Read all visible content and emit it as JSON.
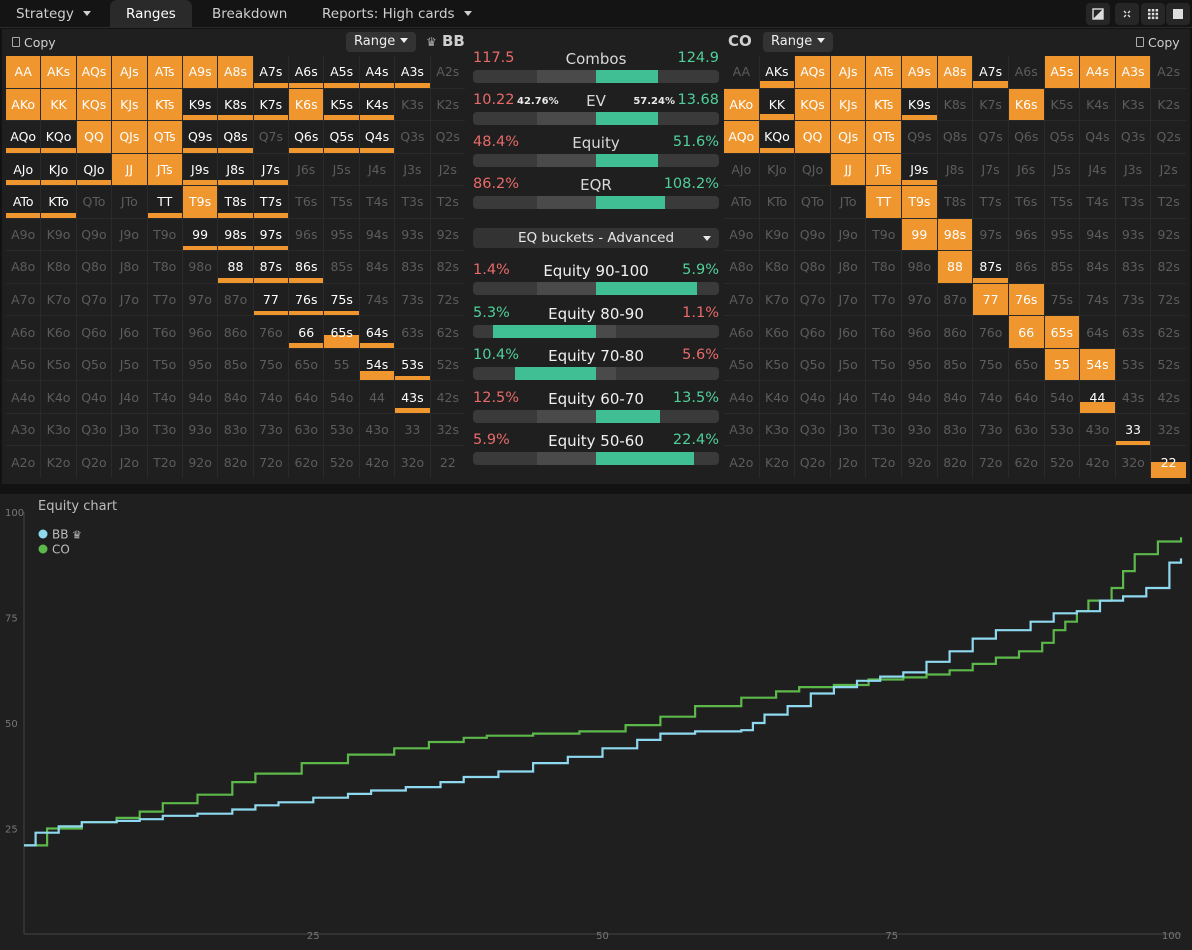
{
  "tabs": [
    {
      "label": "Strategy",
      "dropdown": true
    },
    {
      "label": "Ranges",
      "active": true
    },
    {
      "label": "Breakdown"
    },
    {
      "label": "Reports: High cards",
      "dropdown": true
    }
  ],
  "left": {
    "copy_label": "Copy",
    "range_label": "Range",
    "player": "BB",
    "fills": [
      [
        100,
        100,
        100,
        100,
        100,
        100,
        100,
        15,
        15,
        15,
        15,
        15,
        0
      ],
      [
        100,
        100,
        100,
        100,
        100,
        15,
        15,
        15,
        100,
        15,
        15,
        0,
        0
      ],
      [
        15,
        15,
        100,
        100,
        100,
        15,
        15,
        0,
        15,
        15,
        15,
        0,
        0
      ],
      [
        15,
        15,
        15,
        100,
        100,
        15,
        15,
        15,
        0,
        0,
        0,
        0,
        0
      ],
      [
        15,
        15,
        0,
        0,
        15,
        100,
        15,
        15,
        0,
        0,
        0,
        0,
        0
      ],
      [
        0,
        0,
        0,
        0,
        0,
        15,
        15,
        15,
        0,
        0,
        0,
        0,
        0
      ],
      [
        0,
        0,
        0,
        0,
        0,
        0,
        15,
        15,
        15,
        0,
        0,
        0,
        0
      ],
      [
        0,
        0,
        0,
        0,
        0,
        0,
        0,
        15,
        15,
        15,
        0,
        0,
        0
      ],
      [
        0,
        0,
        0,
        0,
        0,
        0,
        0,
        0,
        15,
        40,
        15,
        0,
        0
      ],
      [
        0,
        0,
        0,
        0,
        0,
        0,
        0,
        0,
        0,
        0,
        30,
        15,
        0
      ],
      [
        0,
        0,
        0,
        0,
        0,
        0,
        0,
        0,
        0,
        0,
        0,
        15,
        0
      ],
      [
        0,
        0,
        0,
        0,
        0,
        0,
        0,
        0,
        0,
        0,
        0,
        0,
        0
      ],
      [
        0,
        0,
        0,
        0,
        0,
        0,
        0,
        0,
        0,
        0,
        0,
        0,
        0
      ]
    ]
  },
  "right": {
    "copy_label": "Copy",
    "range_label": "Range",
    "player": "CO",
    "fills": [
      [
        0,
        20,
        100,
        100,
        100,
        100,
        100,
        20,
        0,
        100,
        100,
        100,
        0
      ],
      [
        100,
        20,
        100,
        100,
        100,
        15,
        0,
        0,
        100,
        0,
        0,
        0,
        0
      ],
      [
        100,
        15,
        100,
        100,
        100,
        0,
        0,
        0,
        0,
        0,
        0,
        0,
        0
      ],
      [
        0,
        0,
        0,
        100,
        100,
        15,
        0,
        0,
        0,
        0,
        0,
        0,
        0
      ],
      [
        0,
        0,
        0,
        0,
        100,
        100,
        0,
        0,
        0,
        0,
        0,
        0,
        0
      ],
      [
        0,
        0,
        0,
        0,
        0,
        100,
        100,
        0,
        0,
        0,
        0,
        0,
        0
      ],
      [
        0,
        0,
        0,
        0,
        0,
        0,
        100,
        15,
        0,
        0,
        0,
        0,
        0
      ],
      [
        0,
        0,
        0,
        0,
        0,
        0,
        0,
        100,
        100,
        0,
        0,
        0,
        0
      ],
      [
        0,
        0,
        0,
        0,
        0,
        0,
        0,
        0,
        100,
        100,
        0,
        0,
        0
      ],
      [
        0,
        0,
        0,
        0,
        0,
        0,
        0,
        0,
        0,
        100,
        100,
        0,
        0
      ],
      [
        0,
        0,
        0,
        0,
        0,
        0,
        0,
        0,
        0,
        0,
        35,
        0,
        0
      ],
      [
        0,
        0,
        0,
        0,
        0,
        0,
        0,
        0,
        0,
        0,
        0,
        15,
        0
      ],
      [
        0,
        0,
        0,
        0,
        0,
        0,
        0,
        0,
        0,
        0,
        0,
        0,
        50
      ]
    ]
  },
  "stats": [
    {
      "key": "combos",
      "label": "Combos",
      "left": "117.5",
      "right": "124.9",
      "green": 0.25
    },
    {
      "key": "ev",
      "label": "EV",
      "left": "10.22",
      "right": "13.68",
      "left_pct": "42.76%",
      "right_pct": "57.24%",
      "green": 0.25
    },
    {
      "key": "equity",
      "label": "Equity",
      "left": "48.4%",
      "right": "51.6%",
      "green": 0.25
    },
    {
      "key": "eqr",
      "label": "EQR",
      "left": "86.2%",
      "right": "108.2%",
      "green": 0.28
    }
  ],
  "eq_dropdown": "EQ buckets - Advanced",
  "buckets": [
    {
      "label": "Equity 90-100",
      "left": "1.4%",
      "right": "5.9%",
      "lc": "red",
      "rc": "green",
      "gl": 0.5,
      "gr": 0.91
    },
    {
      "label": "Equity 80-90",
      "left": "5.3%",
      "right": "1.1%",
      "lc": "green",
      "rc": "red",
      "gl": 0.08,
      "gr": 0.5
    },
    {
      "label": "Equity 70-80",
      "left": "10.4%",
      "right": "5.6%",
      "lc": "green",
      "rc": "red",
      "gl": 0.17,
      "gr": 0.5
    },
    {
      "label": "Equity 60-70",
      "left": "12.5%",
      "right": "13.5%",
      "lc": "red",
      "rc": "green",
      "gl": 0.5,
      "gr": 0.76
    },
    {
      "label": "Equity 50-60",
      "left": "5.9%",
      "right": "22.4%",
      "lc": "red",
      "rc": "green",
      "gl": 0.5,
      "gr": 0.9
    }
  ],
  "colors": {
    "orange": "#f0962e",
    "bb": "#8fd9f0",
    "co": "#5cb84a"
  },
  "chart_data": {
    "type": "line",
    "title": "Equity chart",
    "xlim": [
      0,
      100
    ],
    "ylim": [
      0,
      100
    ],
    "xticks": [
      "25",
      "50",
      "75",
      "100"
    ],
    "yticks": [
      "100",
      "75",
      "50",
      "25"
    ],
    "series": [
      {
        "name": "BB",
        "points": [
          [
            0,
            21
          ],
          [
            1,
            24
          ],
          [
            3,
            25.5
          ],
          [
            5,
            26.5
          ],
          [
            8,
            26.8
          ],
          [
            10,
            27.2
          ],
          [
            12,
            28
          ],
          [
            15,
            28.5
          ],
          [
            18,
            29.5
          ],
          [
            20,
            30.5
          ],
          [
            22,
            31.2
          ],
          [
            25,
            32.3
          ],
          [
            28,
            33.2
          ],
          [
            30,
            34
          ],
          [
            33,
            34.8
          ],
          [
            36,
            36
          ],
          [
            38,
            37.2
          ],
          [
            41,
            38.5
          ],
          [
            44,
            40.5
          ],
          [
            47,
            42
          ],
          [
            50,
            44
          ],
          [
            53,
            46
          ],
          [
            55,
            47.5
          ],
          [
            58,
            48
          ],
          [
            62,
            48.3
          ],
          [
            63,
            50
          ],
          [
            64,
            52
          ],
          [
            66,
            54
          ],
          [
            68,
            57
          ],
          [
            70,
            58.5
          ],
          [
            72,
            60
          ],
          [
            74,
            61
          ],
          [
            76,
            62
          ],
          [
            78,
            64.5
          ],
          [
            80,
            67
          ],
          [
            82,
            70
          ],
          [
            84,
            72
          ],
          [
            87,
            74
          ],
          [
            89,
            76
          ],
          [
            91,
            76.5
          ],
          [
            93,
            79
          ],
          [
            95,
            80
          ],
          [
            97,
            82
          ],
          [
            99,
            88
          ],
          [
            100,
            89
          ]
        ]
      },
      {
        "name": "CO",
        "points": [
          [
            0,
            21
          ],
          [
            2,
            25
          ],
          [
            5,
            26.5
          ],
          [
            8,
            27.5
          ],
          [
            10,
            29
          ],
          [
            12,
            31
          ],
          [
            15,
            33
          ],
          [
            18,
            36
          ],
          [
            20,
            38
          ],
          [
            24,
            40.5
          ],
          [
            28,
            42.5
          ],
          [
            32,
            44
          ],
          [
            35,
            45.5
          ],
          [
            38,
            46.5
          ],
          [
            40,
            47
          ],
          [
            44,
            47.5
          ],
          [
            48,
            48
          ],
          [
            52,
            49.5
          ],
          [
            55,
            51.5
          ],
          [
            58,
            54
          ],
          [
            62,
            56
          ],
          [
            65,
            57.5
          ],
          [
            67,
            58.5
          ],
          [
            70,
            59
          ],
          [
            73,
            60.3
          ],
          [
            76,
            60.8
          ],
          [
            78,
            61.5
          ],
          [
            80,
            62.5
          ],
          [
            82,
            64
          ],
          [
            84,
            65.5
          ],
          [
            86,
            67
          ],
          [
            88,
            69
          ],
          [
            89,
            72
          ],
          [
            90,
            74
          ],
          [
            91,
            76.5
          ],
          [
            92,
            79
          ],
          [
            94,
            82
          ],
          [
            95,
            86
          ],
          [
            96,
            90
          ],
          [
            98,
            93
          ],
          [
            100,
            94
          ]
        ]
      }
    ]
  }
}
